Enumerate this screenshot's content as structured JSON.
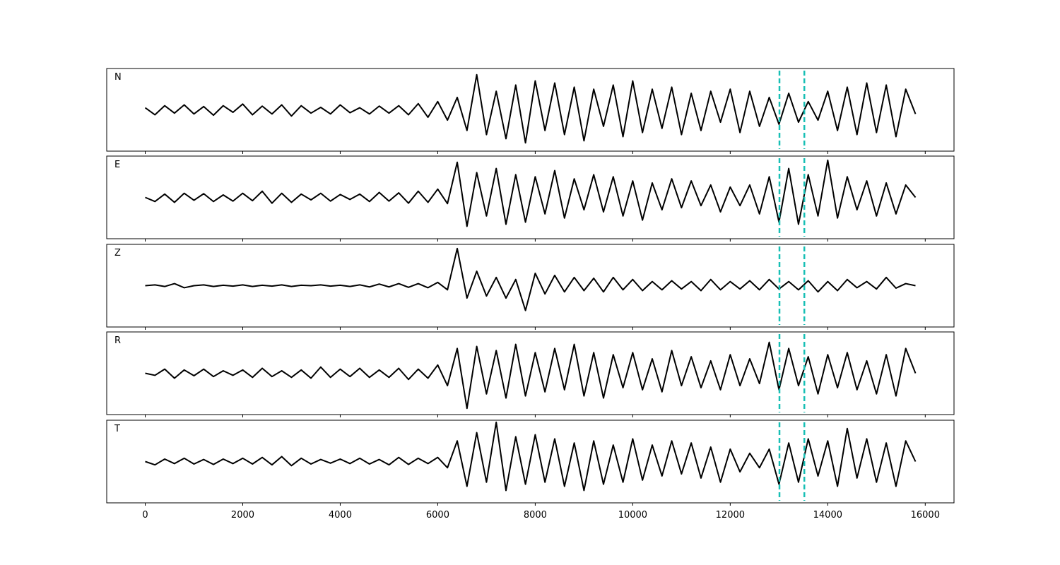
{
  "chart_data": [
    {
      "type": "line",
      "title": "N",
      "color": "#000000",
      "vlines": [
        13010,
        13520
      ],
      "vline_color": "#17bfb5",
      "xlim": [
        -790,
        16590
      ],
      "ylim": [
        -1,
        1
      ],
      "xticks": [
        0,
        2000,
        4000,
        6000,
        8000,
        10000,
        12000,
        14000,
        16000
      ],
      "x": [
        0,
        200,
        400,
        600,
        800,
        1000,
        1200,
        1400,
        1600,
        1800,
        2000,
        2200,
        2400,
        2600,
        2800,
        3000,
        3200,
        3400,
        3600,
        3800,
        4000,
        4200,
        4400,
        4600,
        4800,
        5000,
        5200,
        5400,
        5600,
        5800,
        6000,
        6200,
        6400,
        6600,
        6800,
        7000,
        7200,
        7400,
        7600,
        7800,
        8000,
        8200,
        8400,
        8600,
        8800,
        9000,
        9200,
        9400,
        9600,
        9800,
        10000,
        10200,
        10400,
        10600,
        10800,
        11000,
        11200,
        11400,
        11600,
        11800,
        12000,
        12200,
        12400,
        12600,
        12800,
        13000,
        13200,
        13400,
        13600,
        13800,
        14000,
        14200,
        14400,
        14600,
        14800,
        15000,
        15200,
        15400,
        15600,
        15800
      ],
      "values": [
        0.05,
        -0.12,
        0.1,
        -0.08,
        0.12,
        -0.1,
        0.08,
        -0.13,
        0.1,
        -0.06,
        0.14,
        -0.12,
        0.09,
        -0.1,
        0.12,
        -0.15,
        0.1,
        -0.08,
        0.06,
        -0.1,
        0.12,
        -0.07,
        0.05,
        -0.1,
        0.09,
        -0.08,
        0.1,
        -0.12,
        0.15,
        -0.18,
        0.2,
        -0.25,
        0.3,
        -0.5,
        0.85,
        -0.6,
        0.45,
        -0.7,
        0.6,
        -0.8,
        0.7,
        -0.5,
        0.65,
        -0.6,
        0.55,
        -0.75,
        0.5,
        -0.4,
        0.6,
        -0.65,
        0.7,
        -0.55,
        0.5,
        -0.45,
        0.55,
        -0.6,
        0.4,
        -0.5,
        0.45,
        -0.3,
        0.5,
        -0.55,
        0.45,
        -0.4,
        0.3,
        -0.35,
        0.4,
        -0.3,
        0.2,
        -0.25,
        0.45,
        -0.5,
        0.55,
        -0.6,
        0.65,
        -0.55,
        0.6,
        -0.65,
        0.5,
        -0.1
      ]
    },
    {
      "type": "line",
      "title": "E",
      "color": "#000000",
      "vlines": [
        13010,
        13520
      ],
      "vline_color": "#17bfb5",
      "xlim": [
        -790,
        16590
      ],
      "ylim": [
        -1,
        1
      ],
      "xticks": [
        0,
        2000,
        4000,
        6000,
        8000,
        10000,
        12000,
        14000,
        16000
      ],
      "x": [
        0,
        200,
        400,
        600,
        800,
        1000,
        1200,
        1400,
        1600,
        1800,
        2000,
        2200,
        2400,
        2600,
        2800,
        3000,
        3200,
        3400,
        3600,
        3800,
        4000,
        4200,
        4400,
        4600,
        4800,
        5000,
        5200,
        5400,
        5600,
        5800,
        6000,
        6200,
        6400,
        6600,
        6800,
        7000,
        7200,
        7400,
        7600,
        7800,
        8000,
        8200,
        8400,
        8600,
        8800,
        9000,
        9200,
        9400,
        9600,
        9800,
        10000,
        10200,
        10400,
        10600,
        10800,
        11000,
        11200,
        11400,
        11600,
        11800,
        12000,
        12200,
        12400,
        12600,
        12800,
        13000,
        13200,
        13400,
        13600,
        13800,
        14000,
        14200,
        14400,
        14600,
        14800,
        15000,
        15200,
        15400,
        15600,
        15800
      ],
      "values": [
        0.0,
        -0.1,
        0.08,
        -0.12,
        0.1,
        -0.07,
        0.09,
        -0.1,
        0.06,
        -0.09,
        0.1,
        -0.08,
        0.15,
        -0.14,
        0.1,
        -0.12,
        0.08,
        -0.06,
        0.1,
        -0.09,
        0.07,
        -0.05,
        0.08,
        -0.1,
        0.12,
        -0.09,
        0.11,
        -0.14,
        0.15,
        -0.12,
        0.2,
        -0.15,
        0.85,
        -0.7,
        0.6,
        -0.45,
        0.7,
        -0.65,
        0.55,
        -0.6,
        0.5,
        -0.4,
        0.65,
        -0.5,
        0.45,
        -0.3,
        0.55,
        -0.35,
        0.5,
        -0.45,
        0.4,
        -0.55,
        0.35,
        -0.3,
        0.45,
        -0.25,
        0.4,
        -0.2,
        0.3,
        -0.35,
        0.25,
        -0.2,
        0.3,
        -0.4,
        0.5,
        -0.6,
        0.7,
        -0.65,
        0.55,
        -0.45,
        0.9,
        -0.5,
        0.5,
        -0.3,
        0.4,
        -0.45,
        0.35,
        -0.4,
        0.3,
        0.0
      ]
    },
    {
      "type": "line",
      "title": "Z",
      "color": "#000000",
      "vlines": [
        13010,
        13520
      ],
      "vline_color": "#17bfb5",
      "xlim": [
        -790,
        16590
      ],
      "ylim": [
        -1,
        1
      ],
      "xticks": [
        0,
        2000,
        4000,
        6000,
        8000,
        10000,
        12000,
        14000,
        16000
      ],
      "x": [
        0,
        200,
        400,
        600,
        800,
        1000,
        1200,
        1400,
        1600,
        1800,
        2000,
        2200,
        2400,
        2600,
        2800,
        3000,
        3200,
        3400,
        3600,
        3800,
        4000,
        4200,
        4400,
        4600,
        4800,
        5000,
        5200,
        5400,
        5600,
        5800,
        6000,
        6200,
        6400,
        6600,
        6800,
        7000,
        7200,
        7400,
        7600,
        7800,
        8000,
        8200,
        8400,
        8600,
        8800,
        9000,
        9200,
        9400,
        9600,
        9800,
        10000,
        10200,
        10400,
        10600,
        10800,
        11000,
        11200,
        11400,
        11600,
        11800,
        12000,
        12200,
        12400,
        12600,
        12800,
        13000,
        13200,
        13400,
        13600,
        13800,
        14000,
        14200,
        14400,
        14600,
        14800,
        15000,
        15200,
        15400,
        15600,
        15800
      ],
      "values": [
        0.0,
        0.02,
        -0.02,
        0.05,
        -0.05,
        0.0,
        0.02,
        -0.02,
        0.01,
        -0.01,
        0.02,
        -0.02,
        0.01,
        -0.01,
        0.02,
        -0.02,
        0.01,
        0.0,
        0.02,
        -0.01,
        0.01,
        -0.02,
        0.02,
        -0.03,
        0.04,
        -0.03,
        0.05,
        -0.04,
        0.05,
        -0.05,
        0.08,
        -0.1,
        0.9,
        -0.3,
        0.35,
        -0.25,
        0.2,
        -0.3,
        0.15,
        -0.6,
        0.3,
        -0.2,
        0.25,
        -0.15,
        0.2,
        -0.12,
        0.18,
        -0.15,
        0.2,
        -0.1,
        0.15,
        -0.12,
        0.1,
        -0.1,
        0.12,
        -0.08,
        0.1,
        -0.12,
        0.15,
        -0.1,
        0.1,
        -0.08,
        0.12,
        -0.1,
        0.15,
        -0.08,
        0.1,
        -0.1,
        0.12,
        -0.15,
        0.1,
        -0.12,
        0.15,
        -0.05,
        0.1,
        -0.08,
        0.2,
        -0.06,
        0.05,
        0.0
      ]
    },
    {
      "type": "line",
      "title": "R",
      "color": "#000000",
      "vlines": [
        13010,
        13520
      ],
      "vline_color": "#17bfb5",
      "xlim": [
        -790,
        16590
      ],
      "ylim": [
        -1,
        1
      ],
      "xticks": [
        0,
        2000,
        4000,
        6000,
        8000,
        10000,
        12000,
        14000,
        16000
      ],
      "x": [
        0,
        200,
        400,
        600,
        800,
        1000,
        1200,
        1400,
        1600,
        1800,
        2000,
        2200,
        2400,
        2600,
        2800,
        3000,
        3200,
        3400,
        3600,
        3800,
        4000,
        4200,
        4400,
        4600,
        4800,
        5000,
        5200,
        5400,
        5600,
        5800,
        6000,
        6200,
        6400,
        6600,
        6800,
        7000,
        7200,
        7400,
        7600,
        7800,
        8000,
        8200,
        8400,
        8600,
        8800,
        9000,
        9200,
        9400,
        9600,
        9800,
        10000,
        10200,
        10400,
        10600,
        10800,
        11000,
        11200,
        11400,
        11600,
        11800,
        12000,
        12200,
        12400,
        12600,
        12800,
        13000,
        13200,
        13400,
        13600,
        13800,
        14000,
        14200,
        14400,
        14600,
        14800,
        15000,
        15200,
        15400,
        15600,
        15800
      ],
      "values": [
        0.0,
        -0.05,
        0.1,
        -0.12,
        0.08,
        -0.06,
        0.1,
        -0.08,
        0.06,
        -0.05,
        0.08,
        -0.1,
        0.12,
        -0.08,
        0.06,
        -0.1,
        0.08,
        -0.12,
        0.15,
        -0.1,
        0.1,
        -0.08,
        0.12,
        -0.1,
        0.08,
        -0.1,
        0.12,
        -0.15,
        0.1,
        -0.12,
        0.2,
        -0.3,
        0.6,
        -0.85,
        0.65,
        -0.5,
        0.55,
        -0.6,
        0.7,
        -0.55,
        0.5,
        -0.45,
        0.6,
        -0.4,
        0.7,
        -0.55,
        0.5,
        -0.6,
        0.45,
        -0.35,
        0.5,
        -0.4,
        0.35,
        -0.45,
        0.55,
        -0.3,
        0.4,
        -0.35,
        0.3,
        -0.4,
        0.45,
        -0.3,
        0.35,
        -0.25,
        0.75,
        -0.4,
        0.6,
        -0.3,
        0.4,
        -0.5,
        0.45,
        -0.35,
        0.5,
        -0.4,
        0.3,
        -0.5,
        0.45,
        -0.55,
        0.6,
        0.0
      ]
    },
    {
      "type": "line",
      "title": "T",
      "color": "#000000",
      "vlines": [
        13010,
        13520
      ],
      "vline_color": "#17bfb5",
      "xlim": [
        -790,
        16590
      ],
      "ylim": [
        -1,
        1
      ],
      "xticks": [
        0,
        2000,
        4000,
        6000,
        8000,
        10000,
        12000,
        14000,
        16000
      ],
      "x": [
        0,
        200,
        400,
        600,
        800,
        1000,
        1200,
        1400,
        1600,
        1800,
        2000,
        2200,
        2400,
        2600,
        2800,
        3000,
        3200,
        3400,
        3600,
        3800,
        4000,
        4200,
        4400,
        4600,
        4800,
        5000,
        5200,
        5400,
        5600,
        5800,
        6000,
        6200,
        6400,
        6600,
        6800,
        7000,
        7200,
        7400,
        7600,
        7800,
        8000,
        8200,
        8400,
        8600,
        8800,
        9000,
        9200,
        9400,
        9600,
        9800,
        10000,
        10200,
        10400,
        10600,
        10800,
        11000,
        11200,
        11400,
        11600,
        11800,
        12000,
        12200,
        12400,
        12600,
        12800,
        13000,
        13200,
        13400,
        13600,
        13800,
        14000,
        14200,
        14400,
        14600,
        14800,
        15000,
        15200,
        15400,
        15600,
        15800
      ],
      "values": [
        0.0,
        -0.08,
        0.06,
        -0.05,
        0.08,
        -0.06,
        0.05,
        -0.07,
        0.06,
        -0.05,
        0.08,
        -0.06,
        0.1,
        -0.08,
        0.12,
        -0.1,
        0.08,
        -0.06,
        0.05,
        -0.04,
        0.06,
        -0.05,
        0.08,
        -0.06,
        0.05,
        -0.08,
        0.1,
        -0.07,
        0.08,
        -0.05,
        0.1,
        -0.15,
        0.5,
        -0.6,
        0.7,
        -0.5,
        0.95,
        -0.7,
        0.6,
        -0.55,
        0.65,
        -0.5,
        0.55,
        -0.6,
        0.45,
        -0.7,
        0.5,
        -0.55,
        0.4,
        -0.5,
        0.55,
        -0.45,
        0.4,
        -0.35,
        0.5,
        -0.3,
        0.45,
        -0.4,
        0.35,
        -0.5,
        0.3,
        -0.25,
        0.2,
        -0.15,
        0.3,
        -0.55,
        0.45,
        -0.5,
        0.55,
        -0.35,
        0.5,
        -0.6,
        0.8,
        -0.4,
        0.55,
        -0.5,
        0.45,
        -0.6,
        0.5,
        0.0
      ]
    }
  ]
}
